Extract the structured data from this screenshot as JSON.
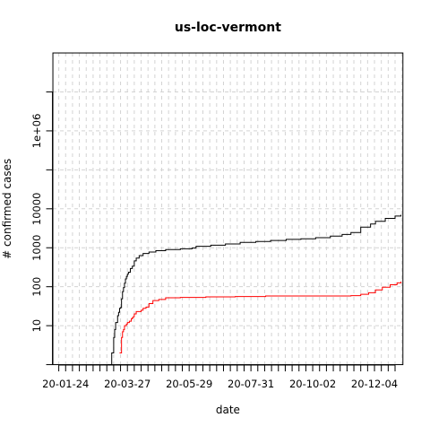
{
  "chart_data": {
    "type": "line",
    "title": "us-loc-vermont",
    "xlabel": "date",
    "ylabel": "# confirmed cases",
    "x_scale": "date",
    "y_scale": "log",
    "xlim": [
      "2020-01-11",
      "2021-01-02"
    ],
    "ylim": [
      1,
      100000000.0
    ],
    "x_tick_labels": [
      "20-01-24",
      "20-03-27",
      "20-05-29",
      "20-07-31",
      "20-10-02",
      "20-12-04"
    ],
    "y_tick_labels": [
      "10",
      "100",
      "1000",
      "10000",
      "1e+06"
    ],
    "y_tick_values": [
      10,
      100,
      1000,
      10000,
      1000000
    ],
    "y_minor_ticks": [
      10000000,
      100000,
      1
    ],
    "grid": true,
    "legend": "none",
    "series": [
      {
        "color": "#000000",
        "points": [
          [
            "2020-03-07",
            1
          ],
          [
            "2020-03-08",
            1
          ],
          [
            "2020-03-10",
            1
          ],
          [
            "2020-03-11",
            2
          ],
          [
            "2020-03-12",
            2
          ],
          [
            "2020-03-13",
            5
          ],
          [
            "2020-03-14",
            8
          ],
          [
            "2020-03-15",
            12
          ],
          [
            "2020-03-16",
            12
          ],
          [
            "2020-03-17",
            18
          ],
          [
            "2020-03-18",
            22
          ],
          [
            "2020-03-19",
            28
          ],
          [
            "2020-03-20",
            29
          ],
          [
            "2020-03-21",
            49
          ],
          [
            "2020-03-22",
            75
          ],
          [
            "2020-03-23",
            95
          ],
          [
            "2020-03-24",
            123
          ],
          [
            "2020-03-25",
            158
          ],
          [
            "2020-03-26",
            184
          ],
          [
            "2020-03-27",
            211
          ],
          [
            "2020-03-28",
            235
          ],
          [
            "2020-03-30",
            293
          ],
          [
            "2020-04-01",
            338
          ],
          [
            "2020-04-03",
            461
          ],
          [
            "2020-04-05",
            543
          ],
          [
            "2020-04-08",
            628
          ],
          [
            "2020-04-12",
            711
          ],
          [
            "2020-04-18",
            779
          ],
          [
            "2020-04-25",
            842
          ],
          [
            "2020-05-05",
            902
          ],
          [
            "2020-05-20",
            944
          ],
          [
            "2020-06-01",
            987
          ],
          [
            "2020-06-05",
            1092
          ],
          [
            "2020-06-20",
            1161
          ],
          [
            "2020-07-05",
            1251
          ],
          [
            "2020-07-20",
            1374
          ],
          [
            "2020-08-05",
            1446
          ],
          [
            "2020-08-20",
            1536
          ],
          [
            "2020-09-05",
            1638
          ],
          [
            "2020-09-20",
            1700
          ],
          [
            "2020-10-05",
            1812
          ],
          [
            "2020-10-20",
            1991
          ],
          [
            "2020-11-01",
            2198
          ],
          [
            "2020-11-10",
            2463
          ],
          [
            "2020-11-20",
            3374
          ],
          [
            "2020-11-30",
            4084
          ],
          [
            "2020-12-05",
            4780
          ],
          [
            "2020-12-15",
            5678
          ],
          [
            "2020-12-25",
            6513
          ],
          [
            "2020-12-31",
            7034
          ]
        ]
      },
      {
        "color": "#ff0000",
        "points": [
          [
            "2020-03-19",
            2
          ],
          [
            "2020-03-20",
            2
          ],
          [
            "2020-03-21",
            5
          ],
          [
            "2020-03-22",
            7
          ],
          [
            "2020-03-23",
            8
          ],
          [
            "2020-03-24",
            10
          ],
          [
            "2020-03-25",
            10
          ],
          [
            "2020-03-26",
            11
          ],
          [
            "2020-03-27",
            12
          ],
          [
            "2020-03-28",
            12
          ],
          [
            "2020-03-29",
            13
          ],
          [
            "2020-03-31",
            15
          ],
          [
            "2020-04-01",
            16
          ],
          [
            "2020-04-02",
            17
          ],
          [
            "2020-04-03",
            20
          ],
          [
            "2020-04-05",
            23
          ],
          [
            "2020-04-08",
            23
          ],
          [
            "2020-04-10",
            25
          ],
          [
            "2020-04-12",
            28
          ],
          [
            "2020-04-15",
            30
          ],
          [
            "2020-04-18",
            37
          ],
          [
            "2020-04-22",
            44
          ],
          [
            "2020-04-28",
            47
          ],
          [
            "2020-05-05",
            52
          ],
          [
            "2020-05-20",
            53
          ],
          [
            "2020-06-15",
            55
          ],
          [
            "2020-07-15",
            56
          ],
          [
            "2020-08-15",
            58
          ],
          [
            "2020-09-15",
            58
          ],
          [
            "2020-10-15",
            58
          ],
          [
            "2020-11-10",
            59
          ],
          [
            "2020-11-20",
            64
          ],
          [
            "2020-11-28",
            70
          ],
          [
            "2020-12-05",
            83
          ],
          [
            "2020-12-12",
            97
          ],
          [
            "2020-12-20",
            112
          ],
          [
            "2020-12-27",
            126
          ],
          [
            "2020-12-31",
            136
          ]
        ]
      }
    ]
  }
}
